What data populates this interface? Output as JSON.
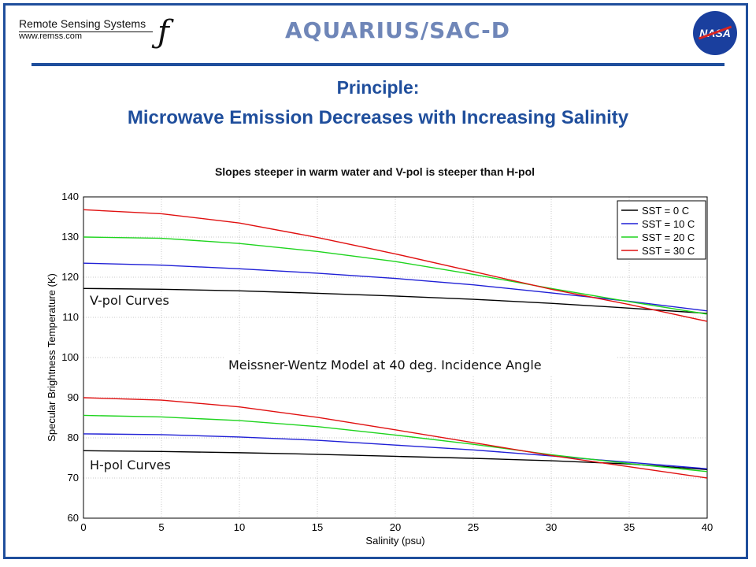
{
  "header": {
    "org_name": "Remote Sensing Systems",
    "org_url": "www.remss.com",
    "mission_logo": "AQUARIUS/SAC-D",
    "agency_logo": "NASA"
  },
  "title_line1": "Principle:",
  "title_line2": "Microwave Emission Decreases with Increasing Salinity",
  "subtitle": "Slopes steeper in warm water and V-pol is steeper than H-pol",
  "colors": {
    "frame": "#1f4e9c",
    "title": "#1f4e9c"
  },
  "chart_data": {
    "type": "line",
    "xlabel": "Salinity (psu)",
    "ylabel": "Specular Brightness Temperature (K)",
    "xlim": [
      0,
      40
    ],
    "ylim": [
      60,
      140
    ],
    "xticks": [
      0,
      5,
      10,
      15,
      20,
      25,
      30,
      35,
      40
    ],
    "yticks": [
      60,
      70,
      80,
      90,
      100,
      110,
      120,
      130,
      140
    ],
    "grid": true,
    "legend_position": "top-right",
    "x": [
      0,
      5,
      10,
      15,
      20,
      25,
      30,
      35,
      40
    ],
    "series": [
      {
        "name": "SST = 0 C",
        "color": "#000000",
        "group": "V-pol",
        "values": [
          117.2,
          117.0,
          116.6,
          116.0,
          115.3,
          114.5,
          113.5,
          112.3,
          111.0
        ]
      },
      {
        "name": "SST = 10 C",
        "color": "#1f1fd6",
        "group": "V-pol",
        "values": [
          123.5,
          123.0,
          122.1,
          121.0,
          119.7,
          118.1,
          116.1,
          114.0,
          111.6
        ]
      },
      {
        "name": "SST = 20 C",
        "color": "#1ed41e",
        "group": "V-pol",
        "values": [
          130.0,
          129.7,
          128.4,
          126.4,
          123.9,
          120.7,
          117.2,
          113.9,
          110.8
        ]
      },
      {
        "name": "SST = 30 C",
        "color": "#e01010",
        "group": "V-pol",
        "values": [
          136.8,
          135.8,
          133.5,
          129.9,
          125.8,
          121.4,
          117.0,
          113.2,
          109.0
        ]
      },
      {
        "name": "SST = 0 C",
        "color": "#000000",
        "group": "H-pol",
        "values": [
          76.8,
          76.6,
          76.3,
          75.9,
          75.4,
          74.9,
          74.3,
          73.5,
          72.1
        ]
      },
      {
        "name": "SST = 10 C",
        "color": "#1f1fd6",
        "group": "H-pol",
        "values": [
          81.0,
          80.8,
          80.2,
          79.4,
          78.2,
          77.0,
          75.5,
          73.9,
          72.3
        ]
      },
      {
        "name": "SST = 20 C",
        "color": "#1ed41e",
        "group": "H-pol",
        "values": [
          85.6,
          85.2,
          84.3,
          82.8,
          80.7,
          78.4,
          75.8,
          73.6,
          71.6
        ]
      },
      {
        "name": "SST = 30 C",
        "color": "#e01010",
        "group": "H-pol",
        "values": [
          90.0,
          89.4,
          87.7,
          85.1,
          82.0,
          78.8,
          75.6,
          72.8,
          70.0
        ]
      }
    ],
    "legend": [
      {
        "label": "SST = 0 C",
        "color": "#000000"
      },
      {
        "label": "SST = 10 C",
        "color": "#1f1fd6"
      },
      {
        "label": "SST = 20 C",
        "color": "#1ed41e"
      },
      {
        "label": "SST = 30 C",
        "color": "#e01010"
      }
    ],
    "annotations": {
      "vpol": "V-pol Curves",
      "hpol": "H-pol Curves",
      "model": "Meissner-Wentz Model at 40 deg. Incidence Angle"
    }
  }
}
